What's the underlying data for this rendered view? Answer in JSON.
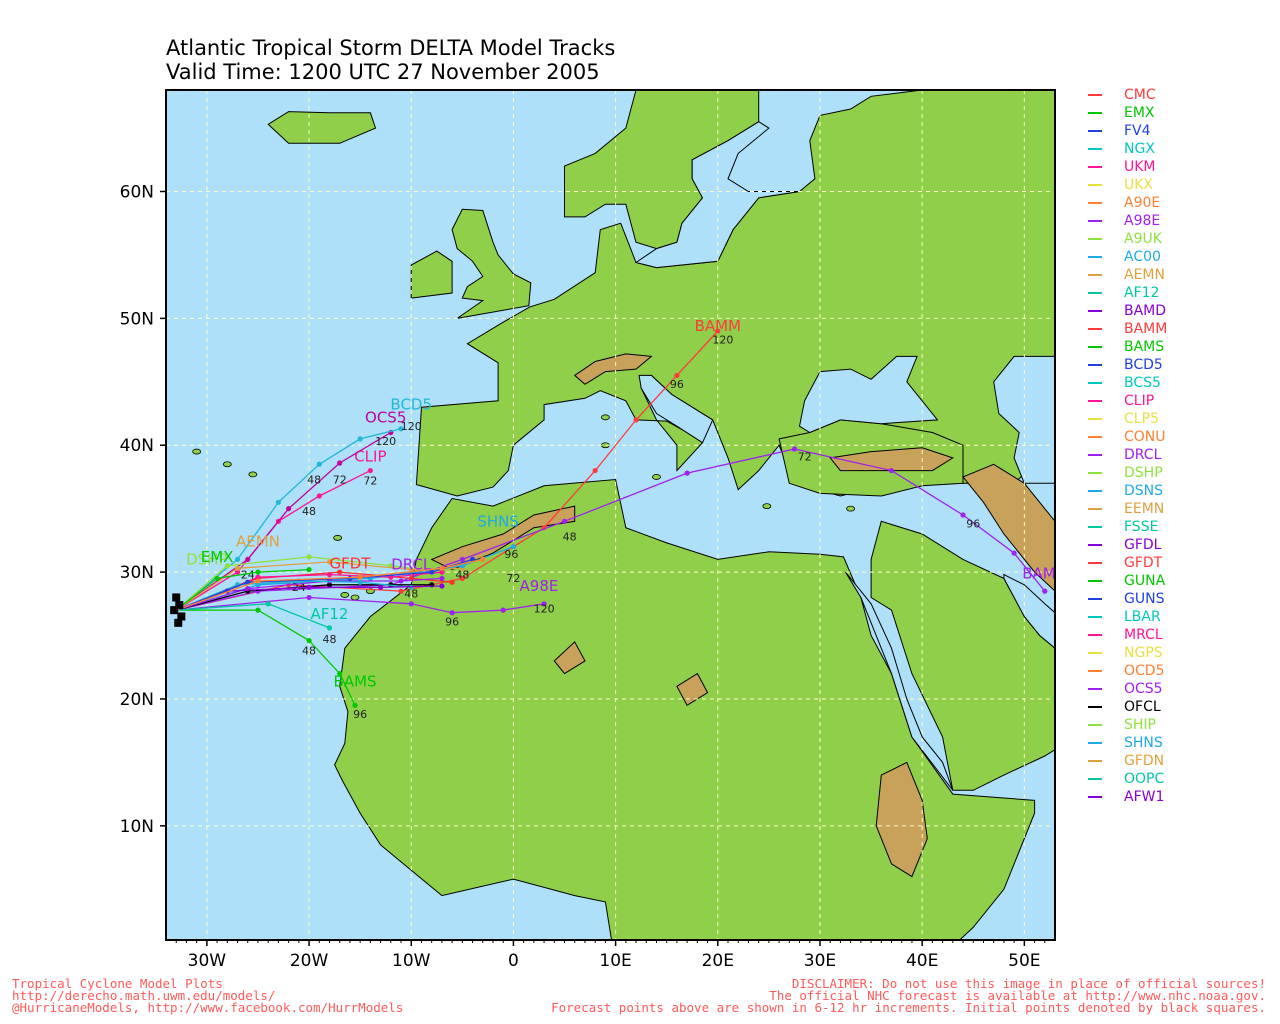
{
  "title": {
    "line1": "Atlantic Tropical Storm DELTA Model Tracks",
    "line2": "Valid Time: 1200 UTC 27 November 2005"
  },
  "map": {
    "lon_range": [
      -34,
      53
    ],
    "lat_range": [
      1,
      68
    ],
    "x_ticks": [
      {
        "lon": -30,
        "label": "30W"
      },
      {
        "lon": -20,
        "label": "20W"
      },
      {
        "lon": -10,
        "label": "10W"
      },
      {
        "lon": 0,
        "label": "0"
      },
      {
        "lon": 10,
        "label": "10E"
      },
      {
        "lon": 20,
        "label": "20E"
      },
      {
        "lon": 30,
        "label": "30E"
      },
      {
        "lon": 40,
        "label": "40E"
      },
      {
        "lon": 50,
        "label": "50E"
      }
    ],
    "y_ticks": [
      {
        "lat": 10,
        "label": "10N"
      },
      {
        "lat": 20,
        "label": "20N"
      },
      {
        "lat": 30,
        "label": "30N"
      },
      {
        "lat": 40,
        "label": "40N"
      },
      {
        "lat": 50,
        "label": "50N"
      },
      {
        "lat": 60,
        "label": "60N"
      }
    ],
    "grid": true,
    "colors": {
      "ocean": "#aee0fa",
      "land": "#8fcf4a",
      "highland": "#c8a15a",
      "peak": "#f4efe8"
    }
  },
  "chart_data": {
    "type": "line",
    "x_unit": "longitude",
    "y_unit": "latitude",
    "initial_position": {
      "lon": -33,
      "lat": 27
    },
    "series": [
      {
        "name": "BAMM",
        "color": "#ff3b3b",
        "points": [
          [
            -33,
            27
          ],
          [
            -22,
            29
          ],
          [
            -11,
            28.5
          ],
          [
            -5,
            29.5
          ],
          [
            3,
            33.5
          ],
          [
            8,
            38
          ],
          [
            12,
            42
          ],
          [
            16,
            45.5
          ],
          [
            20,
            49
          ]
        ],
        "labels": [
          {
            "lon": 20,
            "lat": 49,
            "text": "BAMM",
            "big": true
          },
          {
            "lon": 20.5,
            "lat": 48,
            "text": "120"
          },
          {
            "lon": 16,
            "lat": 44.5,
            "text": "96"
          }
        ]
      },
      {
        "name": "BAMD",
        "color": "#a020f0",
        "points": [
          [
            -33,
            27
          ],
          [
            -25,
            28.5
          ],
          [
            -12,
            29
          ],
          [
            -5,
            31
          ],
          [
            5,
            34
          ],
          [
            17,
            37.8
          ],
          [
            27.5,
            39.7
          ],
          [
            37,
            38
          ],
          [
            44,
            34.5
          ],
          [
            49,
            31.5
          ],
          [
            52,
            28.5
          ]
        ],
        "labels": [
          {
            "lon": 52,
            "lat": 29.5,
            "text": "BAMD",
            "big": true
          },
          {
            "lon": 5.5,
            "lat": 32.5,
            "text": "48"
          },
          {
            "lon": 28.5,
            "lat": 38.8,
            "text": "72"
          },
          {
            "lon": 45,
            "lat": 33.5,
            "text": "96"
          }
        ]
      },
      {
        "name": "A98E",
        "color": "#a020f0",
        "points": [
          [
            -33,
            27
          ],
          [
            -20,
            28
          ],
          [
            -10,
            27.5
          ],
          [
            -6,
            26.8
          ],
          [
            -1,
            27
          ],
          [
            3,
            27.5
          ]
        ],
        "labels": [
          {
            "lon": 2.5,
            "lat": 28.5,
            "text": "A98E",
            "big": true
          },
          {
            "lon": 3,
            "lat": 26.8,
            "text": "120"
          },
          {
            "lon": -6,
            "lat": 25.8,
            "text": "96"
          }
        ]
      },
      {
        "name": "BAMS",
        "color": "#00c800",
        "points": [
          [
            -33,
            27
          ],
          [
            -25,
            27
          ],
          [
            -20,
            24.6
          ],
          [
            -17,
            22
          ],
          [
            -15.5,
            19.5
          ]
        ],
        "labels": [
          {
            "lon": -15.5,
            "lat": 21,
            "text": "BAMS",
            "big": true
          },
          {
            "lon": -15,
            "lat": 18.5,
            "text": "96"
          },
          {
            "lon": -20,
            "lat": 23.5,
            "text": "48"
          }
        ]
      },
      {
        "name": "AF12",
        "color": "#00c8a0",
        "points": [
          [
            -33,
            27
          ],
          [
            -24,
            27.5
          ],
          [
            -18,
            25.6
          ]
        ],
        "labels": [
          {
            "lon": -18,
            "lat": 26.3,
            "text": "AF12",
            "big": true
          },
          {
            "lon": -18,
            "lat": 24.4,
            "text": "48"
          }
        ]
      },
      {
        "name": "CLIP",
        "color": "#ff1493",
        "points": [
          [
            -33,
            27
          ],
          [
            -27,
            30
          ],
          [
            -23,
            34
          ],
          [
            -19,
            36
          ],
          [
            -14,
            38
          ]
        ],
        "labels": [
          {
            "lon": -14,
            "lat": 38.7,
            "text": "CLIP",
            "big": true
          },
          {
            "lon": -14,
            "lat": 36.9,
            "text": "72"
          },
          {
            "lon": -20,
            "lat": 34.5,
            "text": "48"
          }
        ]
      },
      {
        "name": "OCS5",
        "color": "#c000a0",
        "points": [
          [
            -33,
            27
          ],
          [
            -26,
            31
          ],
          [
            -22,
            35
          ],
          [
            -17,
            38.6
          ],
          [
            -12,
            41
          ]
        ],
        "labels": [
          {
            "lon": -12.5,
            "lat": 41.8,
            "text": "OCS5",
            "big": true
          },
          {
            "lon": -12.5,
            "lat": 40,
            "text": "120"
          },
          {
            "lon": -17,
            "lat": 37,
            "text": "72"
          }
        ]
      },
      {
        "name": "BCD5",
        "color": "#22b8d8",
        "points": [
          [
            -33,
            27
          ],
          [
            -27,
            31
          ],
          [
            -23,
            35.5
          ],
          [
            -19,
            38.5
          ],
          [
            -15,
            40.5
          ],
          [
            -11,
            41.3
          ]
        ],
        "labels": [
          {
            "lon": -10,
            "lat": 42.8,
            "text": "BCD5",
            "big": true
          },
          {
            "lon": -10,
            "lat": 41.2,
            "text": "120"
          },
          {
            "lon": -19.5,
            "lat": 37,
            "text": "48"
          }
        ]
      },
      {
        "name": "DSHP",
        "color": "#90e040",
        "points": [
          [
            -33,
            27
          ],
          [
            -28,
            30.5
          ],
          [
            -20,
            31.2
          ],
          [
            -12,
            30.5
          ],
          [
            -7,
            30
          ]
        ],
        "labels": [
          {
            "lon": -30,
            "lat": 30.6,
            "text": "DSHP",
            "big": true
          }
        ]
      },
      {
        "name": "AEMN",
        "color": "#e0a040",
        "points": [
          [
            -33,
            27
          ],
          [
            -27,
            30.3
          ],
          [
            -18,
            30.8
          ],
          [
            -10,
            30.2
          ],
          [
            -5,
            30.3
          ]
        ],
        "labels": [
          {
            "lon": -25,
            "lat": 32,
            "text": "AEMN",
            "big": true
          },
          {
            "lon": -26,
            "lat": 29.5,
            "text": "24"
          }
        ]
      },
      {
        "name": "GFDT",
        "color": "#ff3030",
        "points": [
          [
            -33,
            27
          ],
          [
            -25,
            29.5
          ],
          [
            -17,
            30
          ],
          [
            -10,
            29.5
          ],
          [
            -6,
            29.2
          ]
        ],
        "labels": [
          {
            "lon": -16,
            "lat": 30.3,
            "text": "GFDT",
            "big": true
          }
        ]
      },
      {
        "name": "SHNS",
        "color": "#20a8e8",
        "points": [
          [
            -33,
            27
          ],
          [
            -25,
            29
          ],
          [
            -14,
            29.5
          ],
          [
            -5,
            30.5
          ],
          [
            0,
            32
          ]
        ],
        "labels": [
          {
            "lon": -1.5,
            "lat": 33.6,
            "text": "SHNS",
            "big": true
          },
          {
            "lon": -0.2,
            "lat": 31.1,
            "text": "96"
          },
          {
            "lon": 0,
            "lat": 29.2,
            "text": "72"
          }
        ]
      },
      {
        "name": "OFCL",
        "color": "#000000",
        "points": [
          [
            -33,
            27
          ],
          [
            -26,
            28.5
          ],
          [
            -18,
            29
          ],
          [
            -12,
            29
          ],
          [
            -8,
            29
          ]
        ],
        "labels": [
          {
            "lon": -21,
            "lat": 28.5,
            "text": "24"
          },
          {
            "lon": -10,
            "lat": 28,
            "text": "48"
          }
        ]
      },
      {
        "name": "DRCL",
        "color": "#a020f0",
        "points": [
          [
            -33,
            27
          ],
          [
            -26,
            28.7
          ],
          [
            -18,
            29.3
          ],
          [
            -11,
            29.3
          ],
          [
            -7,
            29.5
          ]
        ],
        "labels": [
          {
            "lon": -10,
            "lat": 30.2,
            "text": "DRCL",
            "big": true
          }
        ]
      },
      {
        "name": "EMX",
        "color": "#00c800",
        "points": [
          [
            -33,
            27
          ],
          [
            -29,
            29.5
          ],
          [
            -25,
            30
          ],
          [
            -20,
            30.2
          ]
        ],
        "labels": [
          {
            "lon": -29,
            "lat": 30.8,
            "text": "EMX",
            "big": true
          }
        ]
      },
      {
        "name": "UKM",
        "color": "#ff1493",
        "points": [
          [
            -33,
            27
          ],
          [
            -25,
            29.6
          ],
          [
            -18,
            29.8
          ],
          [
            -12,
            29.6
          ],
          [
            -7,
            30
          ]
        ],
        "labels": []
      },
      {
        "name": "LBAR",
        "color": "#20b0d0",
        "points": [
          [
            -33,
            27
          ],
          [
            -27,
            29
          ],
          [
            -21,
            29.3
          ],
          [
            -15,
            29.2
          ],
          [
            -10,
            28.8
          ]
        ],
        "labels": []
      },
      {
        "name": "AFW1",
        "color": "#8800d8",
        "points": [
          [
            -33,
            27
          ],
          [
            -28,
            28.5
          ],
          [
            -20,
            28.8
          ],
          [
            -13,
            28.8
          ],
          [
            -7,
            28.9
          ]
        ],
        "labels": []
      },
      {
        "name": "GUNS",
        "color": "#2040e0",
        "points": [
          [
            -33,
            27
          ],
          [
            -26,
            29.2
          ],
          [
            -16,
            29.5
          ],
          [
            -8,
            30
          ],
          [
            -4,
            31
          ]
        ],
        "labels": []
      },
      {
        "name": "CONU",
        "color": "#ff8030",
        "points": [
          [
            -33,
            27
          ],
          [
            -25,
            29.3
          ],
          [
            -15,
            29.6
          ],
          [
            -7,
            30.3
          ],
          [
            -3,
            31
          ]
        ],
        "labels": [
          {
            "lon": -5,
            "lat": 29.5,
            "text": "48"
          }
        ]
      }
    ]
  },
  "legend": [
    {
      "name": "CMC",
      "color": "#ff3b3b"
    },
    {
      "name": "EMX",
      "color": "#00c800"
    },
    {
      "name": "FV4",
      "color": "#2040e0"
    },
    {
      "name": "NGX",
      "color": "#00c8c0"
    },
    {
      "name": "UKM",
      "color": "#ff1493"
    },
    {
      "name": "UKX",
      "color": "#e8e040"
    },
    {
      "name": "A90E",
      "color": "#ff8030"
    },
    {
      "name": "A98E",
      "color": "#a020f0"
    },
    {
      "name": "A9UK",
      "color": "#90e040"
    },
    {
      "name": "AC00",
      "color": "#20a8e8"
    },
    {
      "name": "AEMN",
      "color": "#e0a040"
    },
    {
      "name": "AF12",
      "color": "#00c8a0"
    },
    {
      "name": "BAMD",
      "color": "#8800d8"
    },
    {
      "name": "BAMM",
      "color": "#ff3b3b"
    },
    {
      "name": "BAMS",
      "color": "#00c800"
    },
    {
      "name": "BCD5",
      "color": "#2040e0"
    },
    {
      "name": "BCS5",
      "color": "#00c8c0"
    },
    {
      "name": "CLIP",
      "color": "#ff1493"
    },
    {
      "name": "CLP5",
      "color": "#e8e040"
    },
    {
      "name": "CONU",
      "color": "#ff8030"
    },
    {
      "name": "DRCL",
      "color": "#a020f0"
    },
    {
      "name": "DSHP",
      "color": "#90e040"
    },
    {
      "name": "DSNS",
      "color": "#20a8e8"
    },
    {
      "name": "EEMN",
      "color": "#e0a040"
    },
    {
      "name": "FSSE",
      "color": "#00c8a0"
    },
    {
      "name": "GFDL",
      "color": "#8800d8"
    },
    {
      "name": "GFDT",
      "color": "#ff3b3b"
    },
    {
      "name": "GUNA",
      "color": "#00c800"
    },
    {
      "name": "GUNS",
      "color": "#2040e0"
    },
    {
      "name": "LBAR",
      "color": "#00c8c0"
    },
    {
      "name": "MRCL",
      "color": "#ff1493"
    },
    {
      "name": "NGPS",
      "color": "#e8e040"
    },
    {
      "name": "OCD5",
      "color": "#ff8030"
    },
    {
      "name": "OCS5",
      "color": "#a020f0"
    },
    {
      "name": "OFCL",
      "color": "#000000"
    },
    {
      "name": "SHIP",
      "color": "#90e040"
    },
    {
      "name": "SHNS",
      "color": "#20a8e8"
    },
    {
      "name": "GFDN",
      "color": "#e0a040"
    },
    {
      "name": "OOPC",
      "color": "#00c8a0"
    },
    {
      "name": "AFW1",
      "color": "#8800d8"
    }
  ],
  "footer": {
    "left": [
      "Tropical Cyclone Model Plots",
      "http://derecho.math.uwm.edu/models/",
      "@HurricaneModels, http://www.facebook.com/HurrModels"
    ],
    "right": [
      "DISCLAIMER: Do not use this image in place of official sources!",
      "The official NHC forecast is available at http://www.nhc.noaa.gov.",
      "Forecast points above are shown in 6-12 hr increments. Initial points denoted by black squares."
    ]
  }
}
